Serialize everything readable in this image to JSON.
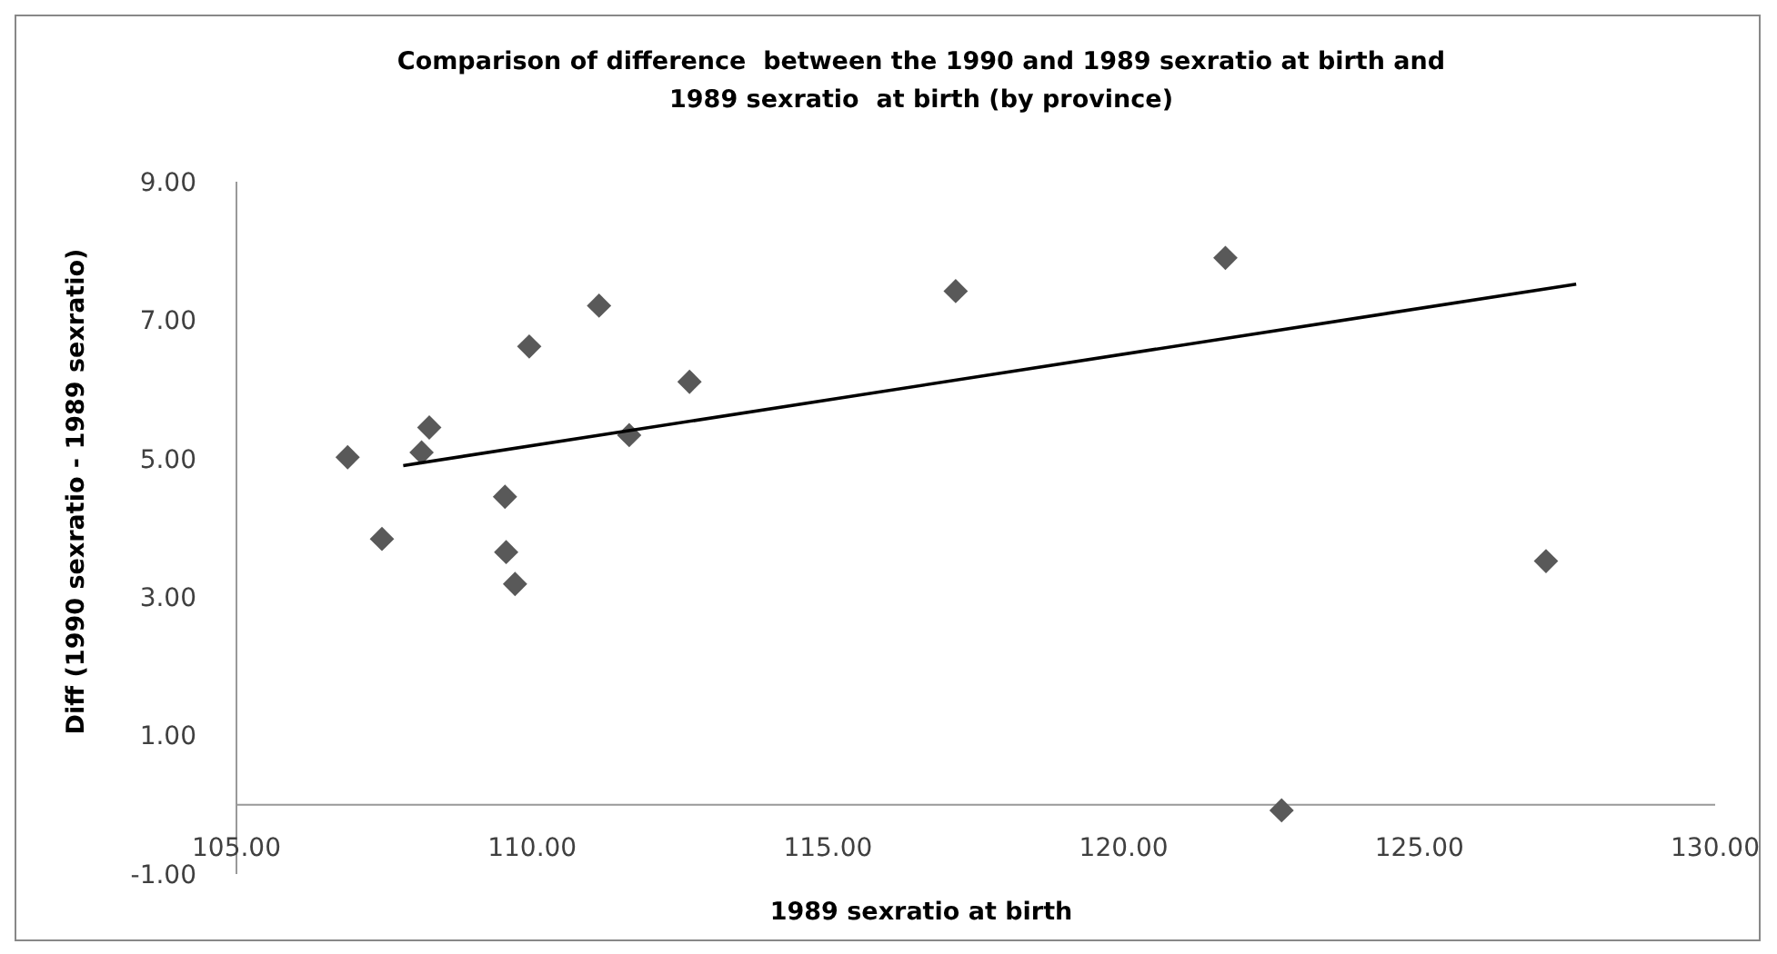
{
  "chart_data": {
    "type": "scatter",
    "title": "Comparison of difference  between the 1990 and 1989 sexratio at birth and\n1989 sexratio  at birth (by province)",
    "xlabel": "1989 sexratio at birth",
    "ylabel": "Diff (1990 sexratio - 1989 sexratio)",
    "xlim": [
      105,
      130
    ],
    "xticks": [
      {
        "value": 105,
        "label": "105.00"
      },
      {
        "value": 110,
        "label": "110.00"
      },
      {
        "value": 115,
        "label": "115.00"
      },
      {
        "value": 120,
        "label": "120.00"
      },
      {
        "value": 125,
        "label": "125.00"
      },
      {
        "value": 130,
        "label": "130.00"
      }
    ],
    "ylim": [
      -1,
      9
    ],
    "yticks": [
      {
        "value": -1,
        "label": "-1.00"
      },
      {
        "value": 1,
        "label": "1.00"
      },
      {
        "value": 3,
        "label": "3.00"
      },
      {
        "value": 5,
        "label": "5.00"
      },
      {
        "value": 7,
        "label": "7.00"
      },
      {
        "value": 9,
        "label": "9.00"
      }
    ],
    "grid": false,
    "series": [
      {
        "color": "#595959",
        "marker": "diamond",
        "x": [
          106.88,
          107.46,
          108.13,
          108.26,
          109.54,
          109.56,
          109.71,
          109.95,
          111.13,
          111.64,
          112.66,
          117.16,
          121.72,
          127.14,
          122.67
        ],
        "values": [
          5.02,
          3.84,
          5.09,
          5.45,
          4.45,
          3.65,
          3.19,
          6.62,
          7.21,
          5.34,
          6.11,
          7.42,
          7.9,
          3.52,
          -0.08
        ]
      },
      {
        "type": "line",
        "color": "#000000",
        "marker": "none",
        "line_style": "solid",
        "x": [
          107.82,
          127.65
        ],
        "values": [
          4.9,
          7.52
        ]
      }
    ]
  }
}
